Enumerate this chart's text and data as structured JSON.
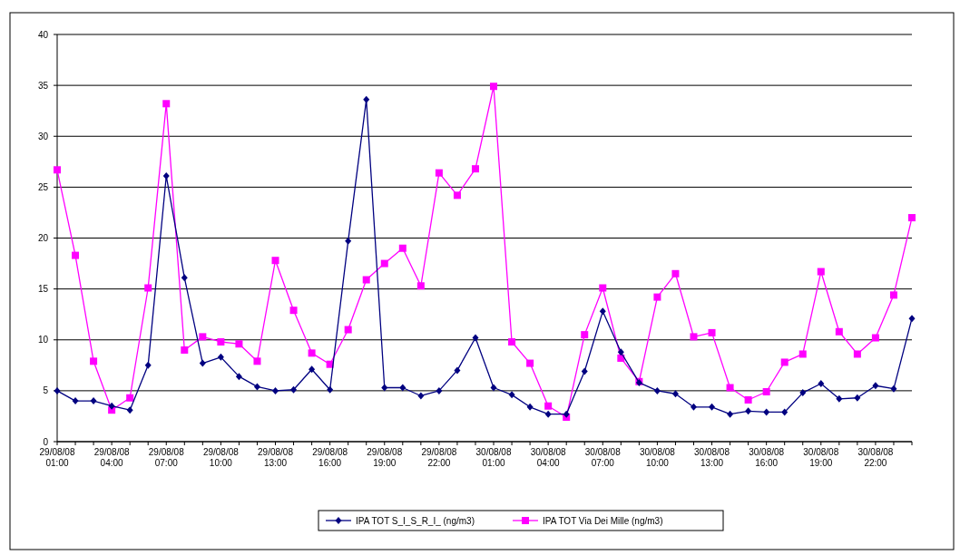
{
  "chart_data": {
    "type": "line",
    "categories": [
      "29/08/08 01:00",
      null,
      null,
      "29/08/08 04:00",
      null,
      null,
      "29/08/08 07:00",
      null,
      null,
      "29/08/08 10:00",
      null,
      null,
      "29/08/08 13:00",
      null,
      null,
      "29/08/08 16:00",
      null,
      null,
      "29/08/08 19:00",
      null,
      null,
      "29/08/08 22:00",
      null,
      null,
      "30/08/08 01:00",
      null,
      null,
      "30/08/08 04:00",
      null,
      null,
      "30/08/08 07:00",
      null,
      null,
      "30/08/08 10:00",
      null,
      null,
      "30/08/08 13:00",
      null,
      null,
      "30/08/08 16:00",
      null,
      null,
      "30/08/08 19:00",
      null,
      null,
      "30/08/08 22:00",
      null,
      null
    ],
    "series": [
      {
        "name": "IPA TOT S_I_S_R_I_ (ng/m3)",
        "color": "#000080",
        "marker": "diamond",
        "values": [
          5.0,
          4.0,
          4.0,
          3.5,
          3.1,
          7.5,
          26.1,
          16.1,
          7.7,
          8.3,
          6.4,
          5.4,
          5.0,
          5.1,
          7.1,
          5.1,
          19.7,
          33.6,
          5.3,
          5.3,
          4.5,
          5.0,
          7.0,
          10.2,
          5.3,
          4.6,
          3.4,
          2.7,
          2.7,
          6.9,
          12.8,
          8.8,
          5.8,
          5.0,
          4.7,
          3.4,
          3.4,
          2.7,
          3.0,
          2.9,
          2.9,
          4.8,
          5.7,
          4.2,
          4.3,
          5.5,
          5.2,
          12.1
        ]
      },
      {
        "name": "IPA TOT Via Dei Mille (ng/m3)",
        "color": "#ff00ff",
        "marker": "square",
        "values": [
          26.7,
          18.3,
          7.9,
          3.1,
          4.3,
          15.1,
          33.2,
          9.0,
          10.3,
          9.8,
          9.6,
          7.9,
          17.8,
          12.9,
          8.7,
          7.6,
          11.0,
          15.9,
          17.5,
          19.0,
          15.3,
          26.4,
          24.2,
          26.8,
          34.9,
          9.8,
          7.7,
          3.5,
          2.4,
          10.5,
          15.1,
          8.2,
          5.9,
          14.2,
          16.5,
          10.3,
          10.7,
          5.3,
          4.1,
          4.9,
          7.8,
          8.6,
          16.7,
          10.8,
          8.6,
          10.2,
          14.4,
          22.0
        ]
      }
    ],
    "ylim": [
      0,
      40
    ],
    "yticks": [
      0,
      5,
      10,
      15,
      20,
      25,
      30,
      35,
      40
    ],
    "grid": "y",
    "legend": "bottom"
  }
}
